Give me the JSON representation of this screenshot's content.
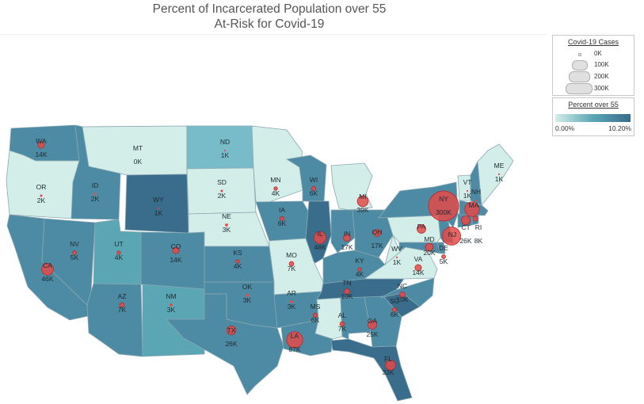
{
  "title_line1": "Percent of Incarcerated Population over 55",
  "title_line2": "At-Risk for Covid-19",
  "legend_cases": {
    "title": "Covid-19 Cases",
    "items": [
      "0K",
      "100K",
      "200K",
      "300K"
    ]
  },
  "legend_percent": {
    "title": "Percent over 55",
    "min_label": "0.00%",
    "max_label": "10.20%",
    "min_color": "#d3ede9",
    "max_color": "#3a6c8b"
  },
  "colors": {
    "level_low": "#d3ede9",
    "level_mid_low": "#78bcc9",
    "level_mid": "#5aa6b5",
    "level_mid_high": "#4d8aa3",
    "level_high": "#3a6c8b",
    "bubble": "#e34a4a",
    "border": "#8aa8b4"
  },
  "chart_data": {
    "type": "map",
    "measure_color": "Percent over 55",
    "measure_size": "Covid-19 Cases",
    "states": [
      {
        "abbr": "WA",
        "cases": "14K",
        "value": 14,
        "shade": "mid_high"
      },
      {
        "abbr": "OR",
        "cases": "2K",
        "value": 2,
        "shade": "low"
      },
      {
        "abbr": "CA",
        "cases": "46K",
        "value": 46,
        "shade": "mid_high"
      },
      {
        "abbr": "NV",
        "cases": "5K",
        "value": 5,
        "shade": "mid_high"
      },
      {
        "abbr": "ID",
        "cases": "2K",
        "value": 2,
        "shade": "mid_high"
      },
      {
        "abbr": "MT",
        "cases": "0K",
        "value": 0,
        "shade": "low"
      },
      {
        "abbr": "WY",
        "cases": "1K",
        "value": 1,
        "shade": "high"
      },
      {
        "abbr": "UT",
        "cases": "4K",
        "value": 4,
        "shade": "mid"
      },
      {
        "abbr": "AZ",
        "cases": "7K",
        "value": 7,
        "shade": "mid_high"
      },
      {
        "abbr": "CO",
        "cases": "14K",
        "value": 14,
        "shade": "mid_high"
      },
      {
        "abbr": "NM",
        "cases": "3K",
        "value": 3,
        "shade": "mid"
      },
      {
        "abbr": "ND",
        "cases": "1K",
        "value": 1,
        "shade": "mid_low"
      },
      {
        "abbr": "SD",
        "cases": "2K",
        "value": 2,
        "shade": "low"
      },
      {
        "abbr": "NE",
        "cases": "3K",
        "value": 3,
        "shade": "low"
      },
      {
        "abbr": "KS",
        "cases": "4K",
        "value": 4,
        "shade": "mid_high"
      },
      {
        "abbr": "OK",
        "cases": "3K",
        "value": 3,
        "shade": "mid_high"
      },
      {
        "abbr": "TX",
        "cases": "26K",
        "value": 26,
        "shade": "mid_high"
      },
      {
        "abbr": "MN",
        "cases": "4K",
        "value": 4,
        "shade": "low"
      },
      {
        "abbr": "IA",
        "cases": "6K",
        "value": 6,
        "shade": "mid_high"
      },
      {
        "abbr": "MO",
        "cases": "7K",
        "value": 7,
        "shade": "low"
      },
      {
        "abbr": "AR",
        "cases": "3K",
        "value": 3,
        "shade": "mid_high"
      },
      {
        "abbr": "LA",
        "cases": "87K",
        "value": 87,
        "shade": "mid_high"
      },
      {
        "abbr": "WI",
        "cases": "6K",
        "value": 6,
        "shade": "mid_high"
      },
      {
        "abbr": "IL",
        "cases": "48K",
        "value": 48,
        "shade": "high"
      },
      {
        "abbr": "MI",
        "cases": "39K",
        "value": 39,
        "shade": "low"
      },
      {
        "abbr": "IN",
        "cases": "17K",
        "value": 17,
        "shade": "mid_high"
      },
      {
        "abbr": "OH",
        "cases": "17K",
        "value": 17,
        "shade": "mid_high"
      },
      {
        "abbr": "KY",
        "cases": "4K",
        "value": 4,
        "shade": "mid_high"
      },
      {
        "abbr": "TN",
        "cases": "10K",
        "value": 10,
        "shade": "high"
      },
      {
        "abbr": "MS",
        "cases": "6K",
        "value": 6,
        "shade": "low"
      },
      {
        "abbr": "AL",
        "cases": "7K",
        "value": 7,
        "shade": "mid_high"
      },
      {
        "abbr": "GA",
        "cases": "25K",
        "value": 25,
        "shade": "mid_high"
      },
      {
        "abbr": "FL",
        "cases": "33K",
        "value": 33,
        "shade": "high"
      },
      {
        "abbr": "SC",
        "cases": "6K",
        "value": 6,
        "shade": "high"
      },
      {
        "abbr": "NC",
        "cases": "10K",
        "value": 10,
        "shade": "mid_high"
      },
      {
        "abbr": "VA",
        "cases": "14K",
        "value": 14,
        "shade": "low"
      },
      {
        "abbr": "WV",
        "cases": "1K",
        "value": 1,
        "shade": "low"
      },
      {
        "abbr": "MD",
        "cases": "20K",
        "value": 20,
        "shade": "mid_high"
      },
      {
        "abbr": "DE",
        "cases": "5K",
        "value": 5,
        "shade": "mid_high"
      },
      {
        "abbr": "PA",
        "cases": "",
        "value": 25,
        "shade": "low"
      },
      {
        "abbr": "NJ",
        "cases": "",
        "value": 110,
        "shade": "mid_high"
      },
      {
        "abbr": "NY",
        "cases": "300K",
        "value": 300,
        "shade": "mid_high"
      },
      {
        "abbr": "CT",
        "cases": "26K",
        "value": 26,
        "shade": "mid_high"
      },
      {
        "abbr": "RI",
        "cases": "8K",
        "value": 8,
        "shade": "mid_high"
      },
      {
        "abbr": "MA",
        "cases": "",
        "value": 70,
        "shade": "mid_high"
      },
      {
        "abbr": "VT",
        "cases": "1K",
        "value": 1,
        "shade": "low"
      },
      {
        "abbr": "NH",
        "cases": "",
        "value": 1,
        "shade": "mid_high"
      },
      {
        "abbr": "ME",
        "cases": "1K",
        "value": 1,
        "shade": "low"
      }
    ]
  }
}
